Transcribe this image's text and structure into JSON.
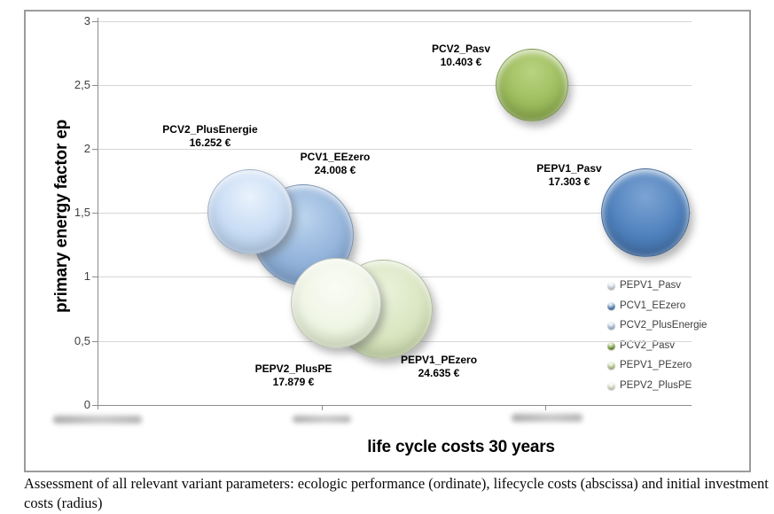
{
  "chart_data": {
    "type": "scatter",
    "variant": "bubble",
    "title": "",
    "xlabel": "life cycle costs 30 years",
    "ylabel": "primary energy factor ep",
    "ylim": [
      0,
      3
    ],
    "grid": true,
    "legend_position": "right",
    "y_tick_labels": [
      "3",
      "2,5",
      "2",
      "1,5",
      "1",
      "0,5",
      "0"
    ],
    "x_tick_labels_redacted_count": 3,
    "series": [
      {
        "name": "PEPV1_Pasv",
        "primary_energy_factor": 1.5,
        "investment_cost_label": "17.303 €",
        "color_base": "#4e80bc",
        "color_hi": "#7ca4d4",
        "color_edge": "#3e699f"
      },
      {
        "name": "PCV1_EEzero",
        "primary_energy_factor": 1.35,
        "investment_cost_label": "24.008 €",
        "color_base": "#92b2da",
        "color_hi": "#bcd4ee",
        "color_edge": "#7499c4"
      },
      {
        "name": "PCV2_PlusEnergie",
        "primary_energy_factor": 1.5,
        "investment_cost_label": "16.252 €",
        "color_base": "#c6dbf4",
        "color_hi": "#e9f2fc",
        "color_edge": "#afc9e6"
      },
      {
        "name": "PCV2_Pasv",
        "primary_energy_factor": 2.5,
        "investment_cost_label": "10.403 €",
        "color_base": "#9cbc5c",
        "color_hi": "#b9d37f",
        "color_edge": "#7f9e42"
      },
      {
        "name": "PEPV1_PEzero",
        "primary_energy_factor": 0.75,
        "investment_cost_label": "24.635 €",
        "color_base": "#d9e5c0",
        "color_hi": "#ebf2db",
        "color_edge": "#c2d4a2"
      },
      {
        "name": "PEPV2_PlusPE",
        "primary_energy_factor": 0.8,
        "investment_cost_label": "17.879 €",
        "color_base": "#eff5e4",
        "color_hi": "#fafcf5",
        "color_edge": "#d9e6c4"
      }
    ]
  },
  "legend": {
    "items": [
      {
        "label": "PEPV1_Pasv",
        "bullet_color": "#dde6ee",
        "bullet_edge": "#aab8c4"
      },
      {
        "label": "PCV1_EEzero",
        "bullet_color": "#5b8ac2",
        "bullet_edge": "#3a639a"
      },
      {
        "label": "PCV2_PlusEnergie",
        "bullet_color": "#b7cde8",
        "bullet_edge": "#8aaccf"
      },
      {
        "label": "PCV2_Pasv",
        "bullet_color": "#7fab3a",
        "bullet_edge": "#5d8227"
      },
      {
        "label": "PEPV1_PEzero",
        "bullet_color": "#c5d79b",
        "bullet_edge": "#a3ba74"
      },
      {
        "label": "PEPV2_PlusPE",
        "bullet_color": "#e9f1da",
        "bullet_edge": "#c4d4ab"
      }
    ]
  },
  "figure": {
    "caption": "Assessment of all relevant variant parameters: ecologic performance (ordinate), lifecycle costs (abscissa) and initial investment costs (radius)"
  }
}
